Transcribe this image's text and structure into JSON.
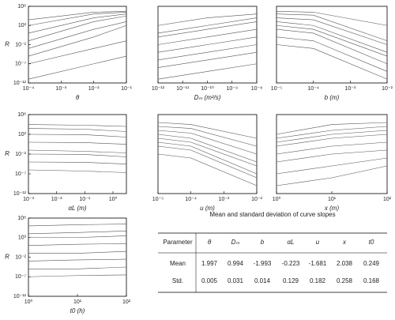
{
  "chart_data": [
    {
      "type": "line",
      "y_label": "R",
      "x_label": "θ",
      "log_x": true,
      "log_y": true,
      "color": "#555555",
      "xlim": [
        0.0001,
        0.1
      ],
      "ylim": [
        1e-12,
        100000000.0
      ],
      "xticks": [
        {
          "value": 0.0001,
          "label": "10⁻⁴"
        },
        {
          "value": 0.001,
          "label": "10⁻³"
        },
        {
          "value": 0.01,
          "label": "10⁻²"
        },
        {
          "value": 0.1,
          "label": "10⁻¹"
        }
      ],
      "yticks": [
        {
          "value": 100000000.0,
          "label": "10⁸"
        },
        {
          "value": 1000,
          "label": "10³"
        },
        {
          "value": 0.01,
          "label": "10⁻²"
        },
        {
          "value": 1e-07,
          "label": "10⁻⁷"
        },
        {
          "value": 1e-12,
          "label": "10⁻¹²"
        }
      ],
      "x": [
        0.0001,
        0.01,
        0.1
      ],
      "series": [
        {
          "values": [
            30000.0,
            3000000.0,
            5000000.0
          ]
        },
        {
          "values": [
            1000.0,
            1000000.0,
            3000000.0
          ]
        },
        {
          "values": [
            10,
            100000.0,
            1000000.0
          ]
        },
        {
          "values": [
            0.1,
            10000.0,
            300000.0
          ]
        },
        {
          "values": [
            0.001,
            100,
            10000.0
          ]
        },
        {
          "values": [
            1e-05,
            1,
            1000
          ]
        },
        {
          "values": [
            1e-07,
            0.001,
            0.1
          ]
        },
        {
          "values": [
            1e-11,
            1e-07,
            1e-05
          ]
        }
      ]
    },
    {
      "type": "line",
      "x_label": "Dₘ (m²/s)",
      "log_x": true,
      "log_y": true,
      "color": "#555555",
      "xlim": [
        1e-12,
        1e-08
      ],
      "ylim": [
        1e-12,
        100000000.0
      ],
      "xticks": [
        {
          "value": 1e-12,
          "label": "10⁻¹²"
        },
        {
          "value": 1e-11,
          "label": "10⁻¹¹"
        },
        {
          "value": 1e-10,
          "label": "10⁻¹⁰"
        },
        {
          "value": 1e-09,
          "label": "10⁻⁹"
        },
        {
          "value": 1e-08,
          "label": "10⁻⁸"
        }
      ],
      "x": [
        1e-12,
        1e-10,
        1e-08
      ],
      "series": [
        {
          "values": [
            1000.0,
            100000.0,
            1000000.0
          ]
        },
        {
          "values": [
            10,
            1000,
            100000.0
          ]
        },
        {
          "values": [
            1,
            100,
            10000.0
          ]
        },
        {
          "values": [
            0.01,
            1,
            100
          ]
        },
        {
          "values": [
            0.0001,
            0.01,
            1
          ]
        },
        {
          "values": [
            1e-06,
            0.0001,
            0.01
          ]
        },
        {
          "values": [
            1e-08,
            1e-06,
            0.0001
          ]
        },
        {
          "values": [
            1e-11,
            1e-09,
            1e-07
          ]
        }
      ]
    },
    {
      "type": "line",
      "x_label": "b (m)",
      "log_x": true,
      "log_y": true,
      "color": "#555555",
      "xlim": [
        1e-05,
        0.01
      ],
      "ylim": [
        1e-12,
        100000000.0
      ],
      "xticks": [
        {
          "value": 1e-05,
          "label": "10⁻⁵"
        },
        {
          "value": 0.0001,
          "label": "10⁻⁴"
        },
        {
          "value": 0.001,
          "label": "10⁻³"
        },
        {
          "value": 0.01,
          "label": "10⁻²"
        }
      ],
      "x": [
        1e-05,
        0.0001,
        0.01
      ],
      "series": [
        {
          "values": [
            5000000.0,
            3000000.0,
            1000
          ]
        },
        {
          "values": [
            1000000.0,
            500000.0,
            0.1
          ]
        },
        {
          "values": [
            100000.0,
            30000.0,
            0.01
          ]
        },
        {
          "values": [
            10000.0,
            1000,
            0.0001
          ]
        },
        {
          "values": [
            1000,
            100,
            1e-05
          ]
        },
        {
          "values": [
            100,
            10,
            1e-07
          ]
        },
        {
          "values": [
            1,
            0.1,
            1e-09
          ]
        },
        {
          "values": [
            0.01,
            0.001,
            1e-11
          ]
        }
      ]
    },
    {
      "type": "line",
      "y_label": "R",
      "x_label": "αL (m)",
      "log_x": true,
      "log_y": true,
      "color": "#555555",
      "xlim": [
        0.001,
        3
      ],
      "ylim": [
        1e-12,
        100000000.0
      ],
      "xticks": [
        {
          "value": 0.001,
          "label": "10⁻³"
        },
        {
          "value": 0.01,
          "label": "10⁻²"
        },
        {
          "value": 0.1,
          "label": "10⁻¹"
        },
        {
          "value": 1,
          "label": "10⁰"
        }
      ],
      "yticks": [
        {
          "value": 100000000.0,
          "label": "10⁸"
        },
        {
          "value": 1000,
          "label": "10³"
        },
        {
          "value": 0.01,
          "label": "10⁻²"
        },
        {
          "value": 1e-07,
          "label": "10⁻⁷"
        },
        {
          "value": 1e-12,
          "label": "10⁻¹²"
        }
      ],
      "x": [
        0.001,
        0.1,
        3
      ],
      "series": [
        {
          "values": [
            300000.0,
            200000.0,
            100000.0
          ]
        },
        {
          "values": [
            30000.0,
            20000.0,
            5000
          ]
        },
        {
          "values": [
            1000,
            800,
            200
          ]
        },
        {
          "values": [
            10,
            8,
            3
          ]
        },
        {
          "values": [
            0.1,
            0.05,
            0.02
          ]
        },
        {
          "values": [
            0.01,
            0.008,
            0.002
          ]
        },
        {
          "values": [
            0.0001,
            8e-05,
            3e-05
          ]
        },
        {
          "values": [
            1e-06,
            5e-07,
            2e-07
          ]
        }
      ]
    },
    {
      "type": "line",
      "x_label": "u (m)",
      "log_x": true,
      "log_y": true,
      "color": "#555555",
      "xlim": [
        1e-05,
        0.01
      ],
      "ylim": [
        1e-12,
        100000000.0
      ],
      "xticks": [
        {
          "value": 1e-05,
          "label": "10⁻⁵"
        },
        {
          "value": 0.0001,
          "label": "10⁻⁴"
        },
        {
          "value": 0.001,
          "label": "10⁻³"
        },
        {
          "value": 0.01,
          "label": "10⁻²"
        }
      ],
      "x": [
        1e-05,
        0.0001,
        0.01
      ],
      "series": [
        {
          "values": [
            1000000.0,
            300000.0,
            100
          ]
        },
        {
          "values": [
            100000.0,
            30000.0,
            1
          ]
        },
        {
          "values": [
            10000.0,
            2000,
            0.01
          ]
        },
        {
          "values": [
            1000,
            100,
            0.0001
          ]
        },
        {
          "values": [
            100,
            10,
            1e-05
          ]
        },
        {
          "values": [
            10,
            1,
            1e-07
          ]
        },
        {
          "values": [
            1,
            0.1,
            1e-08
          ]
        },
        {
          "values": [
            0.01,
            0.001,
            1e-10
          ]
        }
      ]
    },
    {
      "type": "line",
      "x_label": "x (m)",
      "log_x": true,
      "log_y": true,
      "color": "#555555",
      "xlim": [
        1,
        100
      ],
      "ylim": [
        1e-12,
        100000000.0
      ],
      "xticks": [
        {
          "value": 1,
          "label": "10⁰"
        },
        {
          "value": 10,
          "label": "10¹"
        },
        {
          "value": 100,
          "label": "10²"
        }
      ],
      "x": [
        1,
        10,
        100
      ],
      "series": [
        {
          "values": [
            1000,
            300000.0,
            1000000.0
          ]
        },
        {
          "values": [
            100,
            10000.0,
            100000.0
          ]
        },
        {
          "values": [
            10,
            1000,
            10000.0
          ]
        },
        {
          "values": [
            1,
            100,
            1000
          ]
        },
        {
          "values": [
            0.01,
            1,
            10
          ]
        },
        {
          "values": [
            0.0001,
            0.01,
            0.1
          ]
        },
        {
          "values": [
            1e-07,
            1e-05,
            0.001
          ]
        },
        {
          "values": [
            1e-10,
            1e-08,
            1e-05
          ]
        }
      ]
    },
    {
      "type": "line",
      "y_label": "R",
      "x_label": "t0 (h)",
      "log_x": true,
      "log_y": true,
      "color": "#555555",
      "xlim": [
        1,
        100
      ],
      "ylim": [
        1e-12,
        100000000.0
      ],
      "xticks": [
        {
          "value": 1,
          "label": "10⁰"
        },
        {
          "value": 10,
          "label": "10¹"
        },
        {
          "value": 100,
          "label": "10²"
        }
      ],
      "yticks": [
        {
          "value": 100000000.0,
          "label": "10⁸"
        },
        {
          "value": 1000,
          "label": "10³"
        },
        {
          "value": 0.01,
          "label": "10⁻²"
        },
        {
          "value": 1e-07,
          "label": "10⁻⁷"
        },
        {
          "value": 1e-12,
          "label": "10⁻¹²"
        }
      ],
      "x": [
        1,
        10,
        100
      ],
      "series": [
        {
          "values": [
            1000000.0,
            2000000.0,
            3000000.0
          ]
        },
        {
          "values": [
            10000.0,
            20000.0,
            50000.0
          ]
        },
        {
          "values": [
            1000,
            1000,
            3000
          ]
        },
        {
          "values": [
            10,
            20,
            30
          ]
        },
        {
          "values": [
            0.1,
            0.1,
            0.3
          ]
        },
        {
          "values": [
            0.001,
            0.002,
            0.003
          ]
        },
        {
          "values": [
            1e-05,
            1e-05,
            3e-05
          ]
        },
        {
          "values": [
            1e-07,
            2e-07,
            3e-07
          ]
        }
      ]
    }
  ],
  "table": {
    "title": "Mean and standard deviation of curve slopes",
    "header": [
      "Parameter",
      "θ",
      "Dₘ",
      "b",
      "αL",
      "u",
      "x",
      "t0"
    ],
    "rows": [
      [
        "Mean",
        1.997,
        0.994,
        -1.993,
        -0.223,
        -1.681,
        2.038,
        0.249
      ],
      [
        "Std.",
        0.005,
        0.031,
        0.014,
        0.129,
        0.182,
        0.258,
        0.168
      ]
    ]
  }
}
